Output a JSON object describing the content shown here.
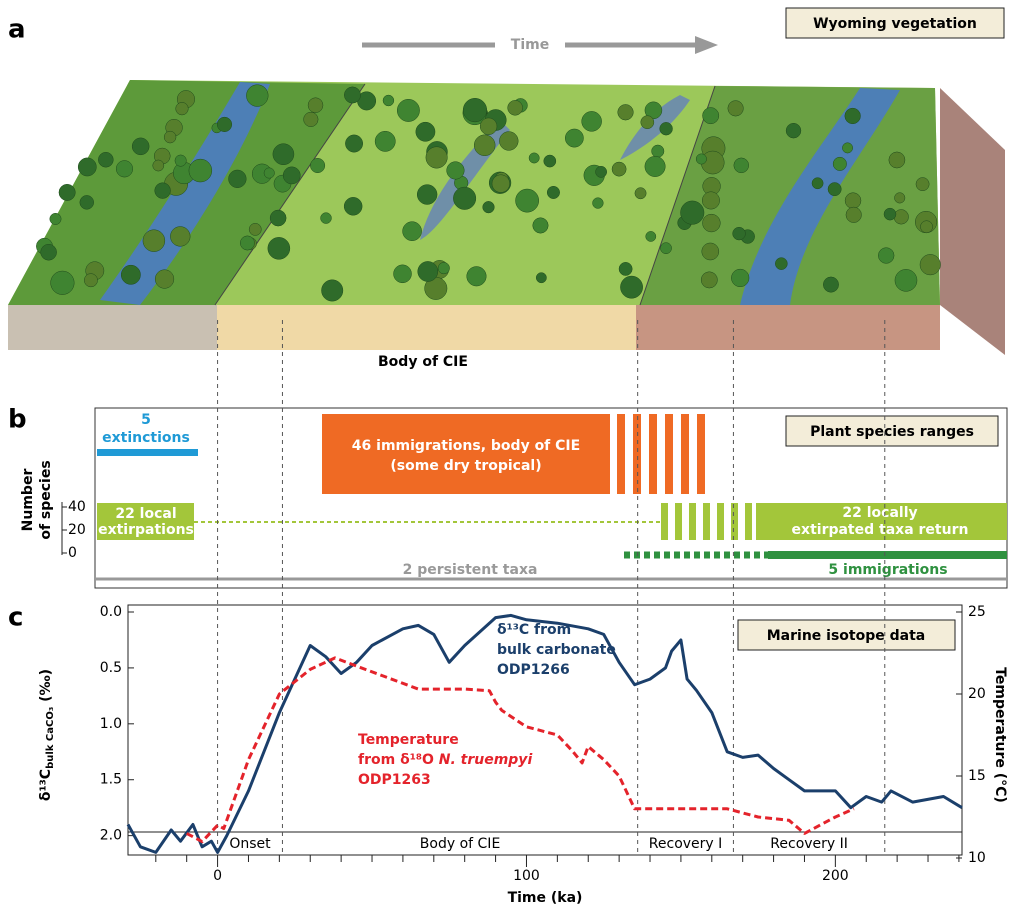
{
  "panel_a": {
    "label": "a",
    "title": "Wyoming vegetation",
    "arrow_label": "Time",
    "caption": "Body of CIE"
  },
  "panel_b": {
    "label": "b",
    "title": "Plant species ranges",
    "axis_label": [
      "Number",
      "of species"
    ],
    "ticks": [
      0,
      20,
      40
    ],
    "extinctions": [
      "5",
      "extinctions"
    ],
    "immigrations_cie": [
      "46 immigrations, body of CIE",
      "(some dry tropical)"
    ],
    "extirpations": [
      "22 local",
      "extirpations"
    ],
    "returns": [
      "22 locally",
      "extirpated taxa return"
    ],
    "persistent": "2 persistent taxa",
    "immigrations_late": "5 immigrations"
  },
  "chart_data": {
    "type": "line",
    "label": "c",
    "title": "Marine isotope data",
    "x_label": "Time (ka)",
    "y_label": [
      "δ¹³C",
      "bulk CaCO₃",
      " (‰)"
    ],
    "y2_label": "Temperature (°C)",
    "xlim": [
      -29,
      241
    ],
    "xticks": [
      0,
      100,
      200
    ],
    "xminor": [
      -20,
      -10,
      10,
      20,
      30,
      40,
      50,
      60,
      70,
      80,
      90,
      110,
      120,
      130,
      140,
      150,
      160,
      170,
      180,
      190,
      210,
      220,
      230,
      240
    ],
    "ylim": [
      2.2,
      0
    ],
    "yticks": [
      {
        "value": 0,
        "label": "0.0"
      },
      0.5,
      {
        "value": 1,
        "label": "1.0"
      },
      1.5,
      {
        "value": 2,
        "label": "2.0"
      }
    ],
    "y2lim": [
      10,
      25
    ],
    "y2ticks": [
      10,
      15,
      20,
      25
    ],
    "phases": [
      "Onset",
      "Body of CIE",
      "Recovery I",
      "Recovery II"
    ],
    "phase_boundaries": [
      0,
      21,
      136,
      167,
      216
    ],
    "series": [
      {
        "name": [
          "δ¹³C from",
          "bulk carbonate",
          "ODP1266"
        ],
        "color": "#1b3f6b",
        "dashed": false,
        "x": [
          -29,
          -25,
          -20,
          -15,
          -12,
          -8,
          -5,
          -2,
          0,
          3,
          10,
          20,
          30,
          35,
          40,
          45,
          50,
          60,
          65,
          70,
          75,
          80,
          90,
          95,
          100,
          110,
          120,
          125,
          130,
          135,
          140,
          145,
          147,
          150,
          152,
          155,
          160,
          165,
          170,
          175,
          180,
          185,
          190,
          200,
          205,
          210,
          215,
          218,
          225,
          235,
          241
        ],
        "values": [
          1.9,
          2.1,
          2.15,
          1.95,
          2.05,
          1.9,
          2.1,
          2.05,
          2.15,
          2.0,
          1.6,
          0.9,
          0.3,
          0.4,
          0.55,
          0.45,
          0.3,
          0.15,
          0.12,
          0.2,
          0.45,
          0.3,
          0.05,
          0.03,
          0.07,
          0.1,
          0.15,
          0.2,
          0.45,
          0.65,
          0.6,
          0.5,
          0.35,
          0.25,
          0.6,
          0.7,
          0.9,
          1.25,
          1.3,
          1.28,
          1.4,
          1.5,
          1.6,
          1.6,
          1.75,
          1.65,
          1.7,
          1.6,
          1.7,
          1.65,
          1.75
        ]
      },
      {
        "name": [
          "Temperature",
          "from δ¹⁸O ",
          "N. truempyi",
          "ODP1263"
        ],
        "color": "#e4232b",
        "dashed": true,
        "axis": "y2",
        "x": [
          -10,
          -5,
          0,
          2,
          10,
          20,
          30,
          38,
          45,
          55,
          65,
          80,
          88,
          90,
          92,
          100,
          110,
          115,
          118,
          120,
          125,
          130,
          135,
          150,
          165,
          175,
          185,
          190,
          195,
          200,
          206
        ],
        "values": [
          11.5,
          11.0,
          12.0,
          11.8,
          16,
          20,
          21.5,
          22.2,
          21.7,
          21,
          20.3,
          20.3,
          20.2,
          19.5,
          19.0,
          18,
          17.5,
          16.5,
          15.8,
          16.8,
          16,
          15,
          13,
          13,
          13,
          12.5,
          12.3,
          11.5,
          12,
          12.5,
          13
        ]
      }
    ]
  }
}
